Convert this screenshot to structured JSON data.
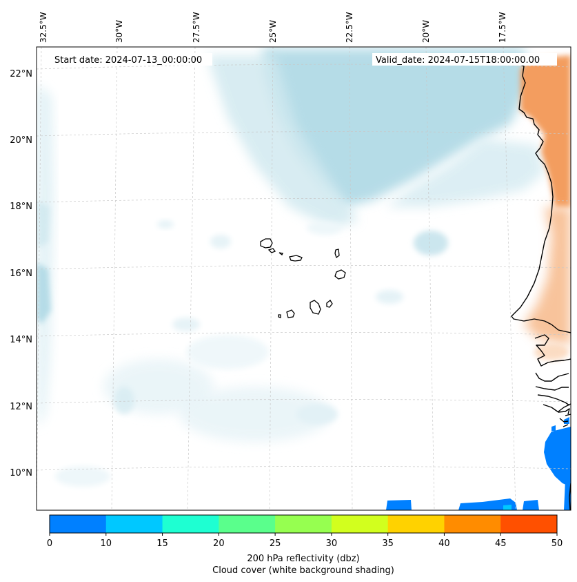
{
  "header": {
    "start_date": "Start date: 2024-07-13_00:00:00",
    "valid_date": "Valid_date: 2024-07-15T18:00:00.00"
  },
  "axes": {
    "longitude_labels": [
      "32.5°W",
      "30°W",
      "27.5°W",
      "25°W",
      "22.5°W",
      "20°W",
      "17.5°W"
    ],
    "latitude_labels": [
      "22°N",
      "20°N",
      "18°N",
      "16°N",
      "14°N",
      "12°N",
      "10°N"
    ]
  },
  "colorbar": {
    "ticks": [
      "0",
      "10",
      "15",
      "20",
      "25",
      "30",
      "35",
      "40",
      "45",
      "50"
    ],
    "colors": [
      "#0080ff",
      "#00c8ff",
      "#1effd2",
      "#5aff8c",
      "#96ff50",
      "#d2ff1e",
      "#ffd200",
      "#ff8c00",
      "#ff5000"
    ],
    "label_line1": "200 hPa reflectivity (dbz)",
    "label_line2": "Cloud cover (white background shading)"
  },
  "palette": {
    "cloud": "#bfe0ea",
    "land_warm": "#f4a66a",
    "coast": "#000000",
    "grid": "#c8c8c8"
  }
}
